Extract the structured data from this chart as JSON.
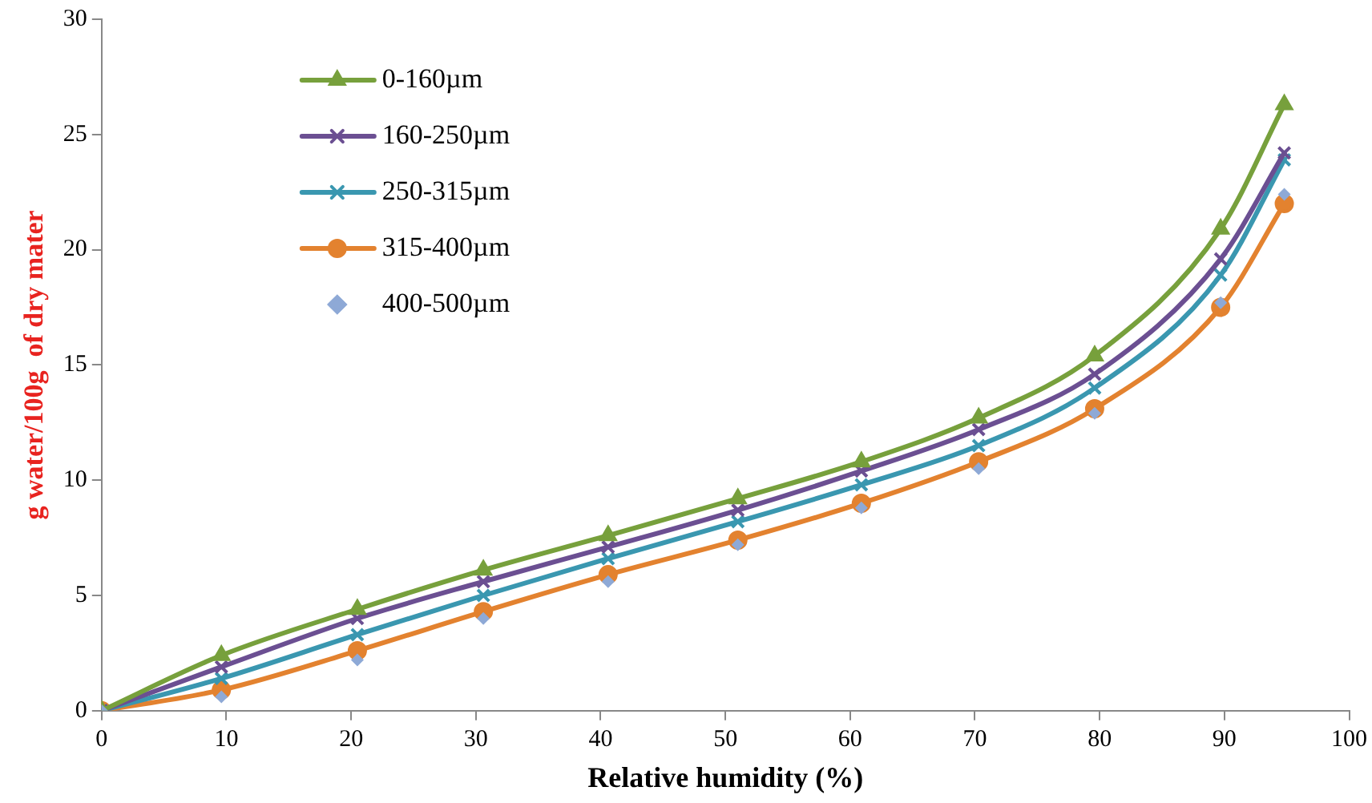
{
  "chart_data": {
    "type": "line",
    "xlabel": "Relative humidity (%)",
    "ylabel": "g water/100g  of dry mater",
    "x": [
      0,
      9.6,
      20.5,
      30.6,
      40.6,
      51,
      60.9,
      70.3,
      79.6,
      89.7,
      94.8
    ],
    "series": [
      {
        "name": "0-160µm",
        "color": "#77a03c",
        "marker": "triangle",
        "values": [
          0,
          2.4,
          4.4,
          6.1,
          7.6,
          9.2,
          10.8,
          12.7,
          15.4,
          20.9,
          26.3
        ]
      },
      {
        "name": "160-250µm",
        "color": "#6b4f92",
        "marker": "cross",
        "values": [
          0,
          1.9,
          4.0,
          5.6,
          7.1,
          8.7,
          10.4,
          12.2,
          14.6,
          19.6,
          24.2
        ]
      },
      {
        "name": "250-315µm",
        "color": "#3a97b0",
        "marker": "cross",
        "values": [
          0,
          1.4,
          3.3,
          5.0,
          6.6,
          8.2,
          9.8,
          11.5,
          14.0,
          18.9,
          23.9
        ]
      },
      {
        "name": "315-400µm",
        "color": "#e3822f",
        "marker": "circle",
        "values": [
          0,
          0.9,
          2.6,
          4.3,
          5.9,
          7.4,
          9.0,
          10.8,
          13.1,
          17.5,
          22.0
        ]
      },
      {
        "name": "400-500µm",
        "color": "#8ea9d6",
        "type": "scatter",
        "marker": "diamond",
        "values": [
          0,
          0.6,
          2.2,
          4.0,
          5.6,
          7.2,
          8.8,
          10.5,
          12.9,
          17.7,
          22.4
        ]
      }
    ],
    "xlim": [
      0,
      100
    ],
    "xticks": [
      0,
      10,
      20,
      30,
      40,
      50,
      60,
      70,
      80,
      90,
      100
    ],
    "ylim": [
      0,
      30
    ],
    "yticks": [
      0,
      5,
      10,
      15,
      20,
      25,
      30
    ],
    "grid": false,
    "legend": "top left"
  }
}
